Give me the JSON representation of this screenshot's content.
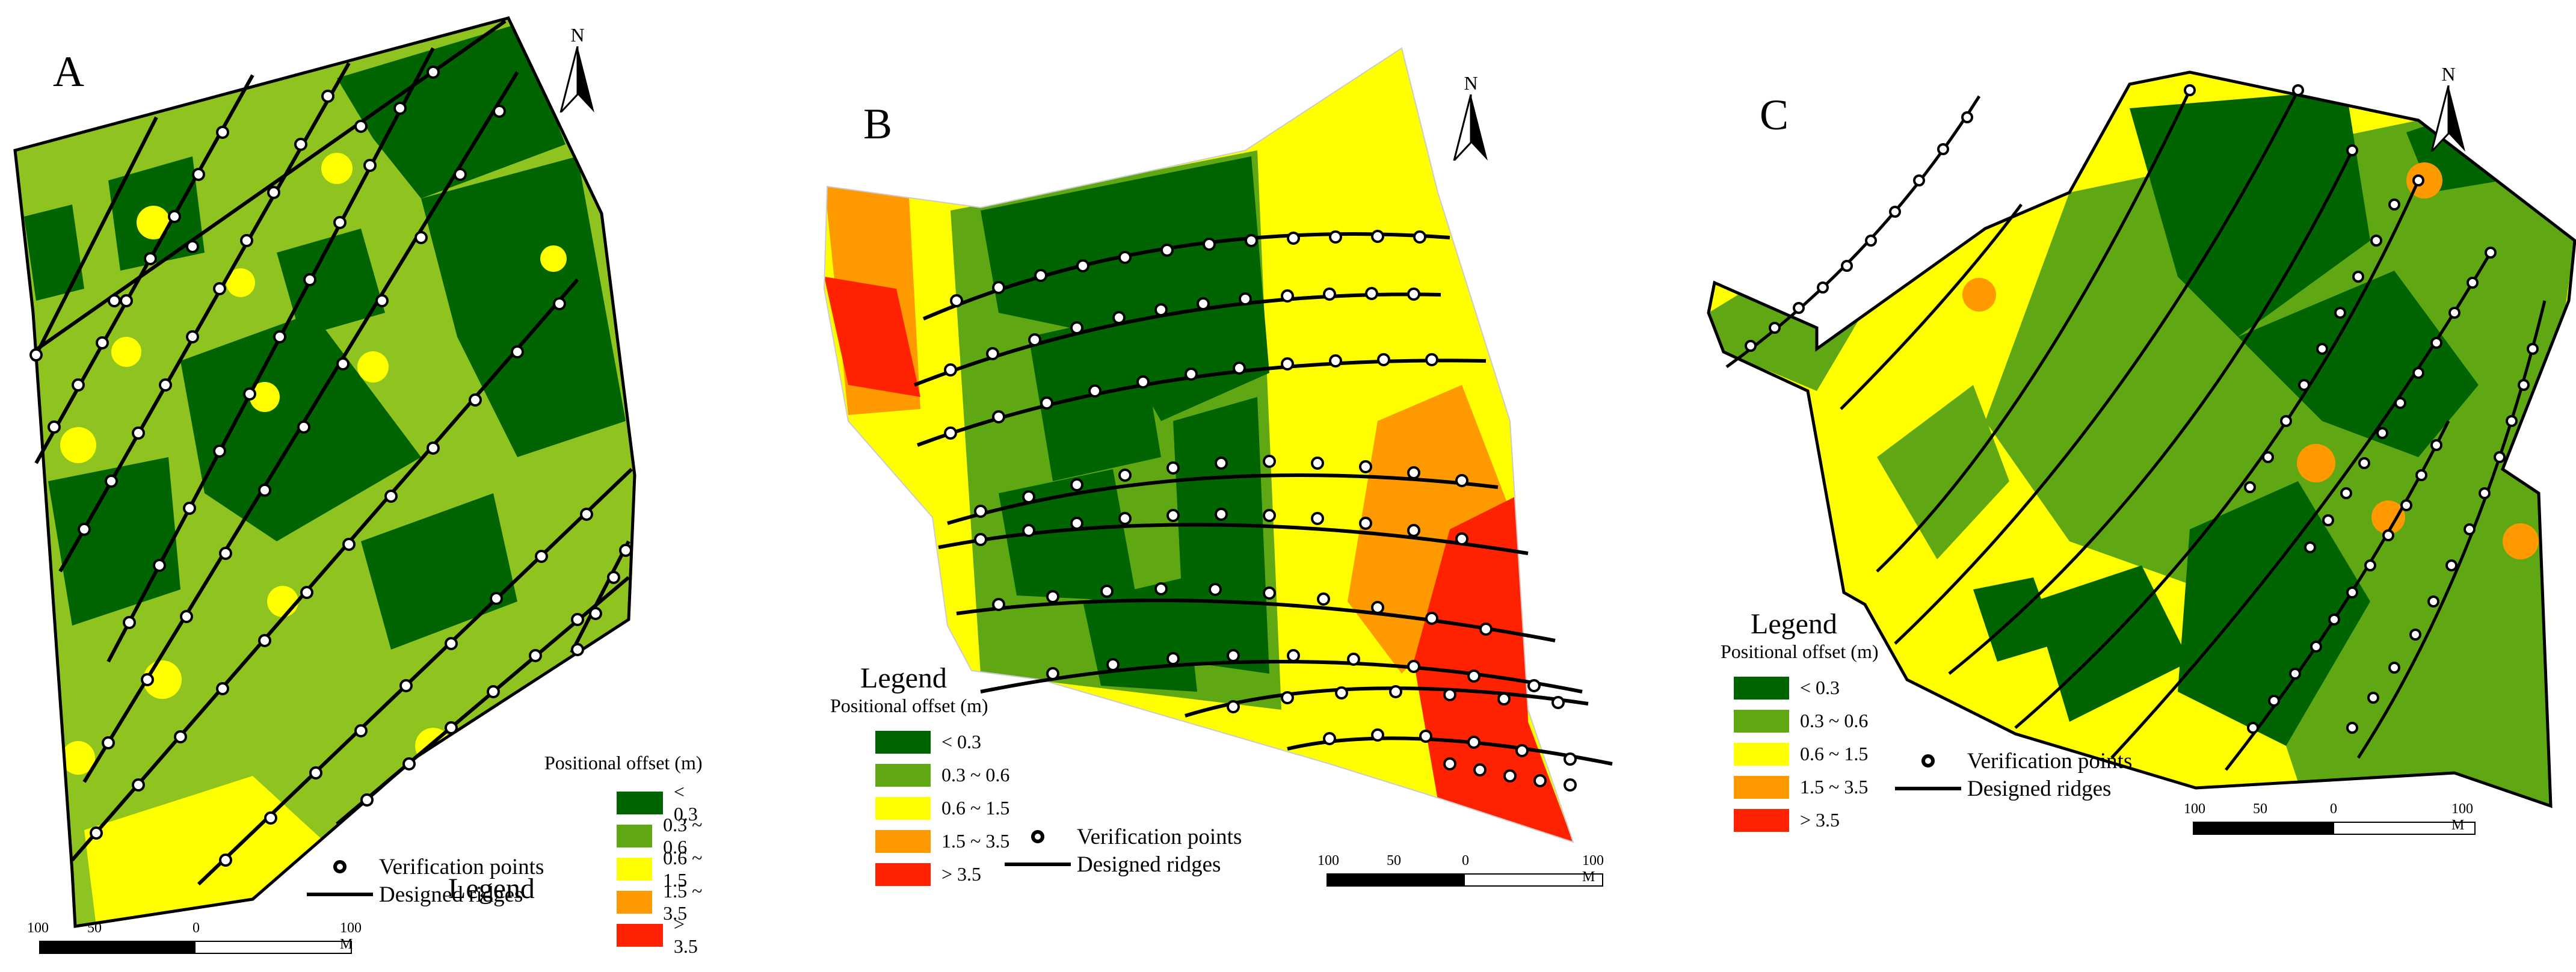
{
  "figure": {
    "panels": [
      {
        "id": "A",
        "label": "A",
        "north": "N"
      },
      {
        "id": "B",
        "label": "B",
        "north": "N"
      },
      {
        "id": "C",
        "label": "C",
        "north": "N"
      }
    ],
    "legend": {
      "title": "Legend",
      "subtitle": "Positional offset (m)",
      "classes": [
        {
          "label": "< 0.3",
          "color": "#006400"
        },
        {
          "label": "0.3 ~ 0.6",
          "color": "#5fa813"
        },
        {
          "label": "0.6 ~ 1.5",
          "color": "#ffff00"
        },
        {
          "label": "1.5 ~ 3.5",
          "color": "#ff9900"
        },
        {
          "label": "> 3.5",
          "color": "#ff2200"
        }
      ],
      "verification_label": "Verification points",
      "ridges_label": "Designed ridges"
    },
    "scale": {
      "labels": [
        "100",
        "50",
        "0",
        "100 M"
      ]
    },
    "colors": {
      "ridge": "#000000",
      "point_stroke": "#000000",
      "boundary": "#000000",
      "field_base": "#8fc31f"
    }
  }
}
